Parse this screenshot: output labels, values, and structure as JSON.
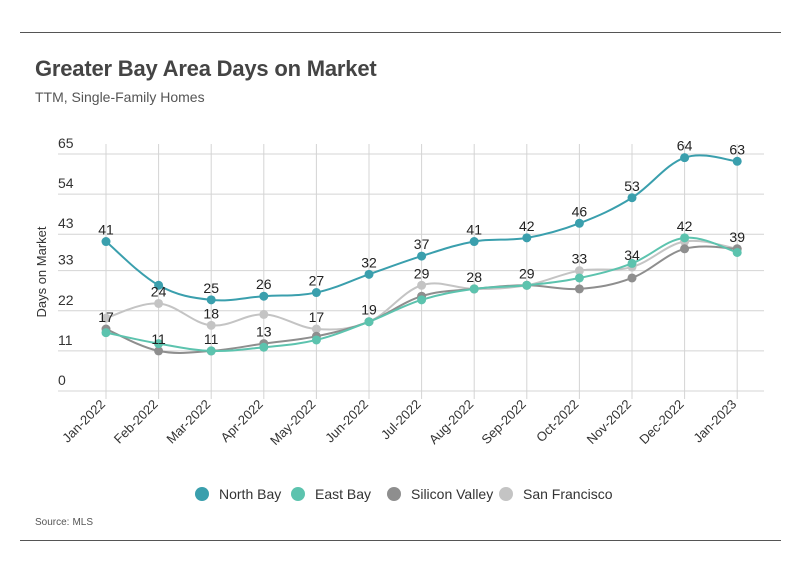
{
  "header": {
    "title": "Greater Bay Area Days on Market",
    "subtitle": "TTM, Single-Family Homes"
  },
  "footer": {
    "source_label": "Source:",
    "source_value": "MLS"
  },
  "chart_data": {
    "type": "line",
    "title": "Greater Bay Area Days on Market",
    "subtitle": "TTM, Single-Family Homes",
    "xlabel": "",
    "ylabel": "Days on Market",
    "categories": [
      "Jan-2022",
      "Feb-2022",
      "Mar-2022",
      "Apr-2022",
      "May-2022",
      "Jun-2022",
      "Jul-2022",
      "Aug-2022",
      "Sep-2022",
      "Oct-2022",
      "Nov-2022",
      "Dec-2022",
      "Jan-2023"
    ],
    "y_ticks": [
      "0",
      "11",
      "22",
      "33",
      "43",
      "54",
      "65"
    ],
    "ylim": [
      0,
      65
    ],
    "grid": true,
    "legend": "bottom",
    "series": [
      {
        "name": "North Bay",
        "color": "#3a9fad",
        "values": [
          41,
          29,
          25,
          26,
          27,
          32,
          37,
          41,
          42,
          46,
          53,
          64,
          63
        ],
        "labels": [
          "41",
          "",
          "25",
          "26",
          "27",
          "32",
          "37",
          "41",
          "42",
          "46",
          "53",
          "64",
          "63"
        ]
      },
      {
        "name": "East Bay",
        "color": "#5cc3ae",
        "values": [
          16,
          13,
          11,
          12,
          14,
          19,
          25,
          28,
          29,
          31,
          35,
          42,
          38
        ],
        "labels": [
          "",
          "",
          "",
          "",
          "",
          "",
          "",
          "",
          "",
          "",
          "",
          "42",
          ""
        ]
      },
      {
        "name": "Silicon Valley",
        "color": "#8e8e8e",
        "values": [
          17,
          11,
          11,
          13,
          15,
          19,
          26,
          28,
          29,
          28,
          31,
          39,
          39
        ],
        "labels": [
          "17",
          "11",
          "11",
          "13",
          "",
          "19",
          "",
          "",
          "",
          "",
          "",
          "",
          ""
        ]
      },
      {
        "name": "San Francisco",
        "color": "#c4c4c4",
        "values": [
          20,
          24,
          18,
          21,
          17,
          19,
          29,
          28,
          29,
          33,
          34,
          41,
          39
        ],
        "labels": [
          "",
          "24",
          "18",
          "",
          "17",
          "",
          "29",
          "28",
          "29",
          "33",
          "34",
          "",
          "39"
        ]
      }
    ]
  }
}
